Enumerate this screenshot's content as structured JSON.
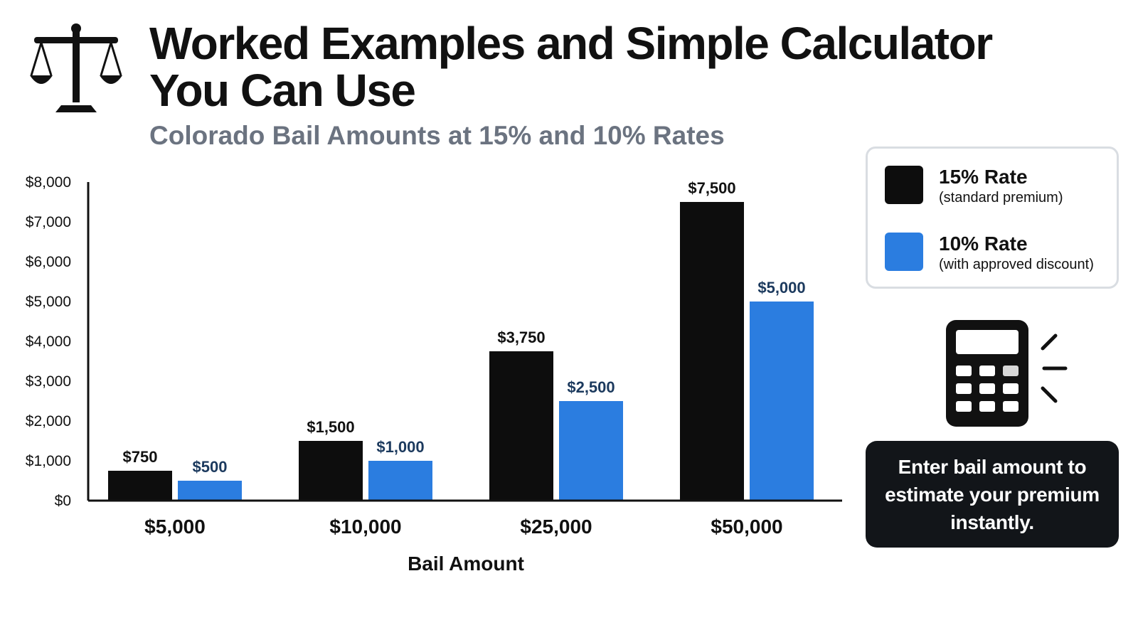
{
  "header": {
    "title": "Worked Examples and Simple Calculator You Can Use",
    "subtitle": "Colorado Bail Amounts at 15% and 10% Rates"
  },
  "icons": {
    "scales": "scales-of-justice-icon",
    "calculator": "calculator-icon"
  },
  "legend": {
    "items": [
      {
        "label": "15% Rate",
        "sublabel": "(standard premium)",
        "color": "#0d0d0d"
      },
      {
        "label": "10% Rate",
        "sublabel": "(with approved discount)",
        "color": "#2b7de0"
      }
    ]
  },
  "cta": {
    "text": "Enter bail amount to estimate your premium instantly."
  },
  "chart_data": {
    "type": "bar",
    "title": "Colorado Bail Amounts at 15% and 10% Rates",
    "xlabel": "Bail Amount",
    "ylabel": "",
    "categories": [
      "$5,000",
      "$10,000",
      "$25,000",
      "$50,000"
    ],
    "series": [
      {
        "name": "15% Rate",
        "values": [
          750,
          1500,
          3750,
          7500
        ],
        "labels": [
          "$750",
          "$1,500",
          "$3,750",
          "$7,500"
        ],
        "color": "#0d0d0d",
        "label_color": "#111111"
      },
      {
        "name": "10% Rate",
        "values": [
          500,
          1000,
          2500,
          5000
        ],
        "labels": [
          "$500",
          "$1,000",
          "$2,500",
          "$5,000"
        ],
        "color": "#2b7de0",
        "label_color": "#1c3a5e"
      }
    ],
    "ylim": [
      0,
      8000
    ],
    "yticks": [
      0,
      1000,
      2000,
      3000,
      4000,
      5000,
      6000,
      7000,
      8000
    ],
    "ytick_labels": [
      "$0",
      "$1,000",
      "$2,000",
      "$3,000",
      "$4,000",
      "$5,000",
      "$6,000",
      "$7,000",
      "$8,000"
    ],
    "grid": false,
    "legend_position": "right"
  }
}
